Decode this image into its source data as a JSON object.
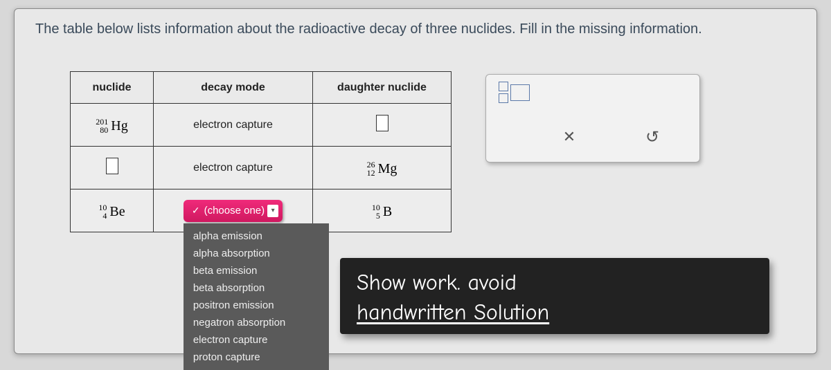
{
  "instruction": "The table below lists information about the radioactive decay of three nuclides. Fill in the missing information.",
  "headers": {
    "nuclide": "nuclide",
    "mode": "decay mode",
    "daughter": "daughter nuclide"
  },
  "rows": [
    {
      "nuclide": {
        "mass": "201",
        "z": "80",
        "sym": "Hg"
      },
      "mode": {
        "type": "text",
        "text": "electron capture"
      },
      "daughter": {
        "blank": true
      }
    },
    {
      "nuclide": {
        "blank": true
      },
      "mode": {
        "type": "text",
        "text": "electron capture"
      },
      "daughter": {
        "mass": "26",
        "z": "12",
        "sym": "Mg"
      }
    },
    {
      "nuclide": {
        "mass": "10",
        "z": "4",
        "sym": "Be"
      },
      "mode": {
        "type": "dropdown",
        "selected": "(choose one)",
        "options": [
          "alpha emission",
          "alpha absorption",
          "beta emission",
          "beta absorption",
          "positron emission",
          "negatron absorption",
          "electron capture",
          "proton capture"
        ]
      },
      "daughter": {
        "mass": "10",
        "z": "5",
        "sym": "B"
      }
    }
  ],
  "toolbox": {
    "clear_icon": "✕",
    "reset_icon": "↺"
  },
  "overlay": {
    "line1": "Show work. avoid",
    "line2": "handwritten Solution"
  },
  "colors": {
    "card_bg": "#e8e8e8",
    "dropdown_bg": "#d01860",
    "menu_bg": "#5a5a5a",
    "overlay_bg": "#222222",
    "tool_stroke": "#5a78a8"
  }
}
